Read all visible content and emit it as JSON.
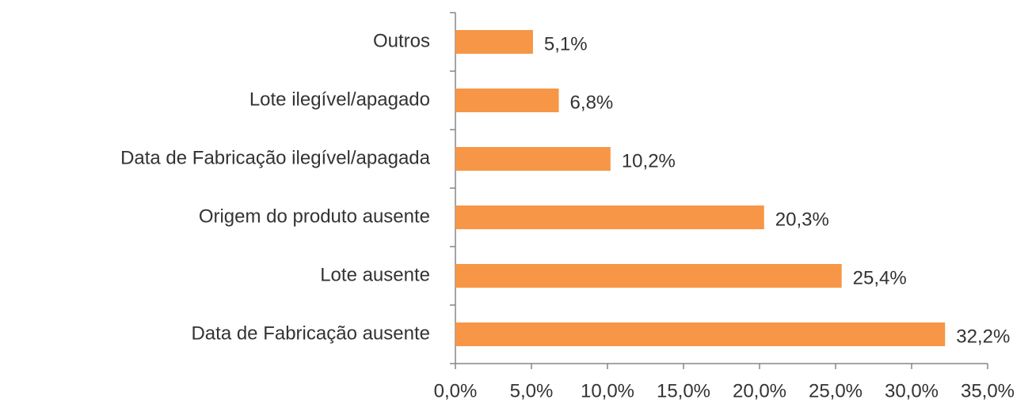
{
  "chart_data": {
    "type": "barh",
    "categories": [
      "Outros",
      "Lote ilegível/apagado",
      "Data de Fabricação ilegível/apagada",
      "Origem do produto ausente",
      "Lote ausente",
      "Data de Fabricação ausente"
    ],
    "values": [
      5.1,
      6.8,
      10.2,
      20.3,
      25.4,
      32.2
    ],
    "value_labels": [
      "5,1%",
      "6,8%",
      "10,2%",
      "20,3%",
      "25,4%",
      "32,2%"
    ],
    "color": "#f79646",
    "xlim": [
      0,
      35
    ],
    "xticks": [
      {
        "value": 0,
        "label": "0,0%"
      },
      {
        "value": 5,
        "label": "5,0%"
      },
      {
        "value": 10,
        "label": "10,0%"
      },
      {
        "value": 15,
        "label": "15,0%"
      },
      {
        "value": 20,
        "label": "20,0%"
      },
      {
        "value": 25,
        "label": "25,0%"
      },
      {
        "value": 30,
        "label": "30,0%"
      },
      {
        "value": 35,
        "label": "35,0%"
      }
    ],
    "grid": false
  }
}
